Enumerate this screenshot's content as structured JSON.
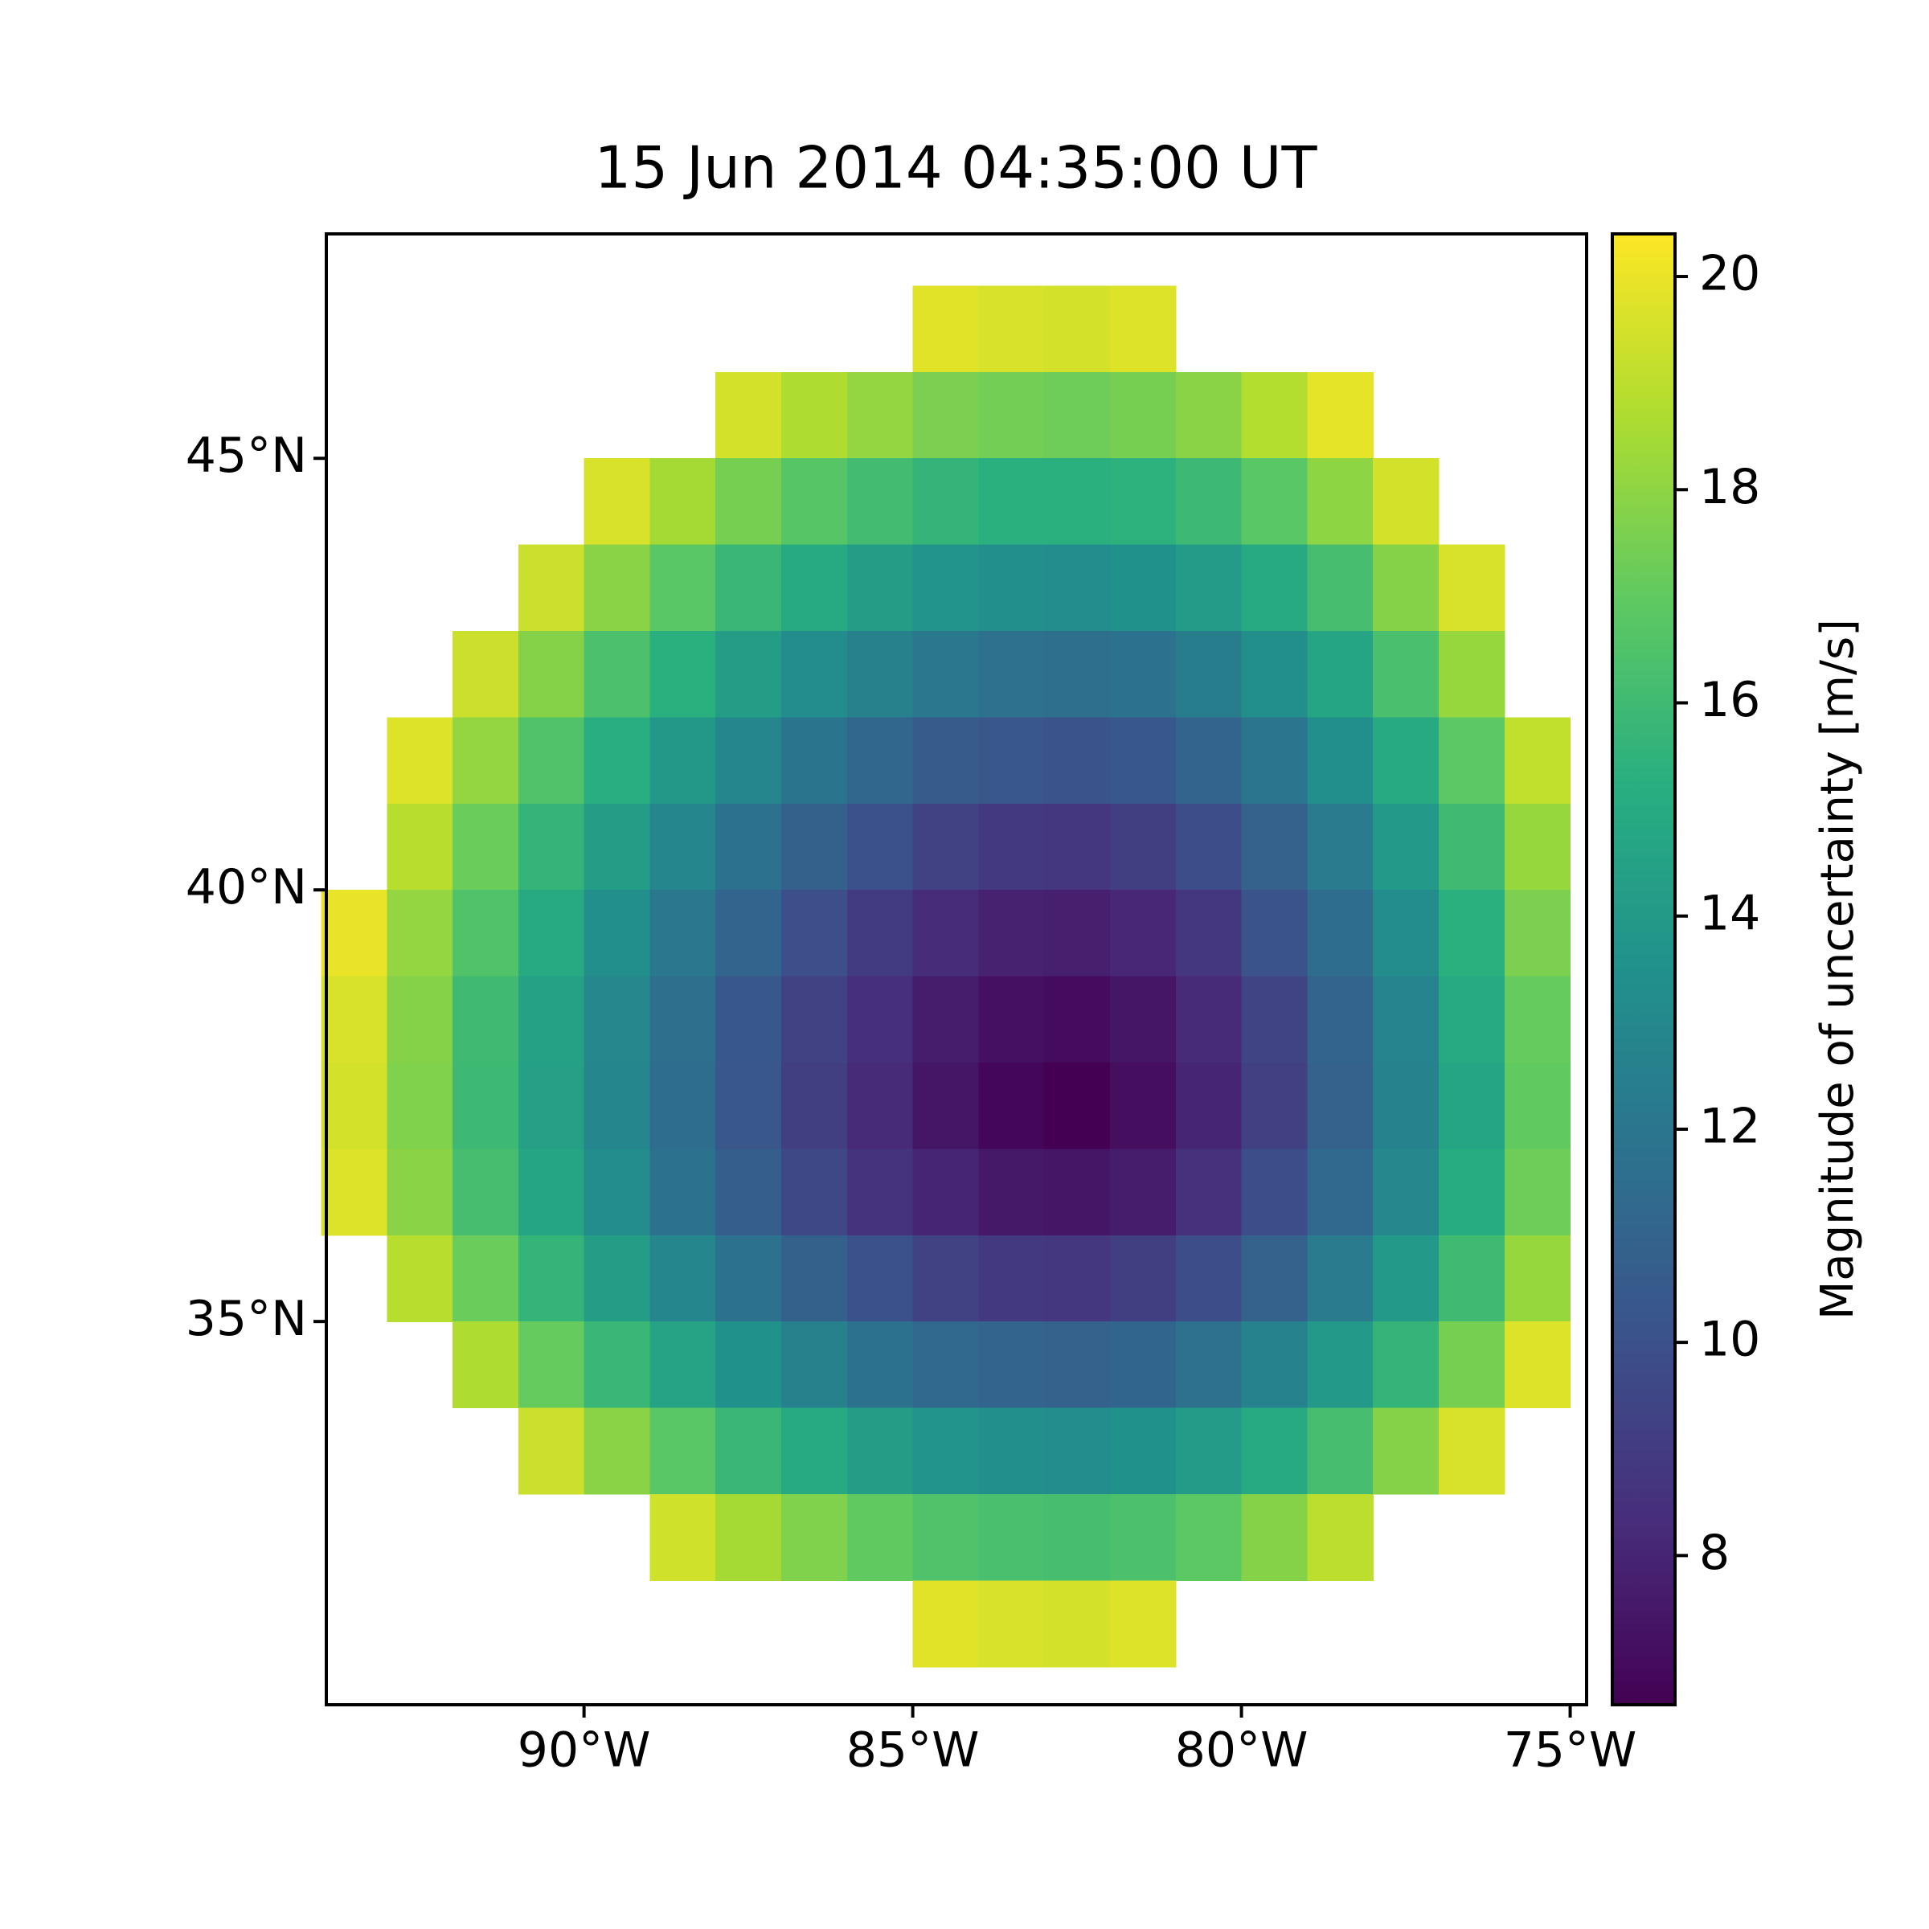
{
  "chart_data": {
    "type": "heatmap",
    "title": "15 Jun 2014 04:35:00 UT",
    "colorbar_label": "Magnitude of uncertainty [m/s]",
    "colormap": "viridis",
    "x": [
      -93.5,
      -92.5,
      -91.5,
      -90.5,
      -89.5,
      -88.5,
      -87.5,
      -86.5,
      -85.5,
      -84.5,
      -83.5,
      -82.5,
      -81.5,
      -80.5,
      -79.5,
      -78.5,
      -77.5,
      -76.5,
      -75.5
    ],
    "y": [
      46.5,
      45.5,
      44.5,
      43.5,
      42.5,
      41.5,
      40.5,
      39.5,
      38.5,
      37.5,
      36.5,
      35.5,
      34.5,
      33.5,
      32.5,
      31.5
    ],
    "z": [
      [
        null,
        null,
        null,
        null,
        null,
        null,
        null,
        null,
        null,
        19.8,
        19.6,
        19.5,
        19.7,
        null,
        null,
        null,
        null,
        null,
        null
      ],
      [
        null,
        null,
        null,
        null,
        null,
        null,
        19.5,
        18.7,
        18.1,
        17.6,
        17.4,
        17.3,
        17.5,
        17.9,
        18.8,
        19.9,
        null,
        null,
        null
      ],
      [
        null,
        null,
        null,
        null,
        19.6,
        18.5,
        17.5,
        16.7,
        16.1,
        15.6,
        15.3,
        15.3,
        15.4,
        15.9,
        16.8,
        18.0,
        19.5,
        null,
        null
      ],
      [
        null,
        null,
        null,
        19.3,
        17.9,
        16.8,
        15.8,
        14.9,
        14.2,
        13.7,
        13.4,
        13.3,
        13.5,
        14.1,
        15.0,
        16.2,
        17.8,
        19.6,
        null
      ],
      [
        null,
        null,
        19.3,
        17.8,
        16.4,
        15.3,
        14.2,
        13.3,
        12.6,
        12.1,
        11.7,
        11.6,
        11.8,
        12.4,
        13.4,
        14.7,
        16.3,
        18.2,
        null
      ],
      [
        null,
        19.7,
        18.1,
        16.5,
        15.2,
        13.9,
        12.9,
        11.9,
        11.2,
        10.6,
        10.3,
        10.1,
        10.4,
        11.0,
        12.0,
        13.4,
        15.0,
        16.9,
        19.1
      ],
      [
        null,
        18.9,
        17.2,
        15.6,
        14.2,
        12.9,
        11.8,
        10.8,
        10.0,
        9.3,
        8.9,
        8.8,
        9.1,
        9.8,
        10.9,
        12.3,
        14.0,
        16.0,
        18.2
      ],
      [
        20.0,
        18.1,
        16.5,
        14.9,
        13.4,
        12.1,
        11.0,
        9.9,
        9.0,
        8.3,
        7.9,
        7.8,
        8.1,
        8.8,
        10.1,
        11.5,
        13.3,
        15.3,
        17.6
      ],
      [
        19.6,
        17.8,
        16.0,
        14.5,
        13.0,
        11.6,
        10.4,
        9.3,
        8.4,
        7.7,
        7.2,
        7.0,
        7.4,
        8.2,
        9.4,
        11.0,
        12.8,
        14.9,
        17.1
      ],
      [
        19.5,
        17.7,
        15.9,
        14.4,
        12.9,
        11.5,
        10.3,
        9.1,
        8.2,
        7.4,
        6.8,
        6.6,
        7.1,
        8.0,
        9.2,
        10.9,
        12.7,
        14.7,
        17.0
      ],
      [
        19.7,
        17.9,
        16.2,
        14.7,
        13.2,
        11.8,
        10.7,
        9.6,
        8.6,
        8.0,
        7.5,
        7.4,
        7.7,
        8.5,
        9.8,
        11.3,
        13.0,
        15.1,
        17.3
      ],
      [
        null,
        18.9,
        17.2,
        15.6,
        14.2,
        12.9,
        11.8,
        10.8,
        10.0,
        9.3,
        8.9,
        8.8,
        9.1,
        9.8,
        10.9,
        12.3,
        14.0,
        16.0,
        18.2
      ],
      [
        null,
        null,
        18.7,
        17.1,
        15.8,
        14.6,
        13.5,
        12.6,
        11.8,
        11.3,
        11.0,
        10.9,
        11.1,
        11.7,
        12.7,
        14.0,
        15.6,
        17.5,
        19.7
      ],
      [
        null,
        null,
        null,
        19.3,
        17.9,
        16.8,
        15.8,
        14.9,
        14.2,
        13.7,
        13.4,
        13.3,
        13.5,
        14.1,
        15.0,
        16.2,
        17.8,
        19.6,
        null
      ],
      [
        null,
        null,
        null,
        null,
        null,
        19.4,
        18.5,
        17.7,
        17.0,
        16.5,
        16.3,
        16.2,
        16.4,
        16.9,
        17.8,
        19.0,
        null,
        null,
        null
      ],
      [
        null,
        null,
        null,
        null,
        null,
        null,
        null,
        null,
        null,
        19.8,
        19.6,
        19.5,
        19.7,
        null,
        null,
        null,
        null,
        null,
        null
      ]
    ],
    "xlim": [
      -93.92,
      -74.75
    ],
    "ylim": [
      30.56,
      47.6
    ],
    "xticks": [
      {
        "value": -90,
        "label": "90°W"
      },
      {
        "value": -85,
        "label": "85°W"
      },
      {
        "value": -80,
        "label": "80°W"
      },
      {
        "value": -75,
        "label": "75°W"
      }
    ],
    "yticks": [
      {
        "value": 35,
        "label": "35°N"
      },
      {
        "value": 40,
        "label": "40°N"
      },
      {
        "value": 45,
        "label": "45°N"
      }
    ],
    "clim": [
      6.6,
      20.4
    ],
    "cticks": [
      8,
      10,
      12,
      14,
      16,
      18,
      20
    ]
  }
}
